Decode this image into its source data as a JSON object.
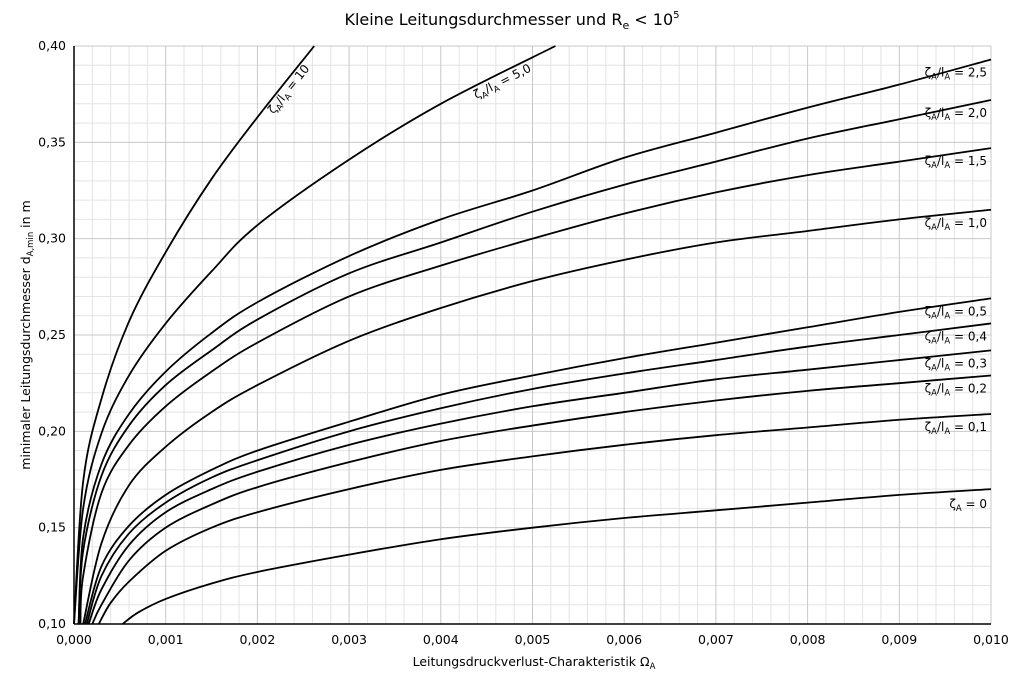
{
  "chart_data": {
    "type": "line",
    "title": {
      "main": "Kleine Leitungsdurchmesser und R",
      "sub": "e",
      "mid": " < 10",
      "sup": "5"
    },
    "xlabel": {
      "main": "Leitungsdruckverlust-Charakteristik Ω",
      "sub": "A"
    },
    "ylabel": {
      "pre": "minimaler Leitungsdurchmesser d",
      "sub": "A,min",
      "post": " in m"
    },
    "xlim": [
      0,
      0.01
    ],
    "ylim": [
      0.1,
      0.4
    ],
    "x_ticks": [
      "0,000",
      "0,001",
      "0,002",
      "0,003",
      "0,004",
      "0,005",
      "0,006",
      "0,007",
      "0,008",
      "0,009",
      "0,010"
    ],
    "y_ticks": [
      "0,10",
      "0,15",
      "0,20",
      "0,25",
      "0,30",
      "0,35",
      "0,40"
    ],
    "x_tick_values": [
      0,
      0.001,
      0.002,
      0.003,
      0.004,
      0.005,
      0.006,
      0.007,
      0.008,
      0.009,
      0.01
    ],
    "y_tick_values": [
      0.1,
      0.15,
      0.2,
      0.25,
      0.3,
      0.35,
      0.4
    ],
    "grid": true,
    "minor_grid": true,
    "legend": "inline labels",
    "line_color": "#000000",
    "series": [
      {
        "name": "ζA/lA = 10",
        "label": {
          "zeta_sub": "A",
          "mid": "/l",
          "l_sub": "A",
          "value": " = 10"
        },
        "label_placement": "rotated-top",
        "x": [
          0.0,
          0.0001,
          0.0003,
          0.0006,
          0.001,
          0.0015,
          0.002,
          0.00262
        ],
        "y": [
          0.1,
          0.174,
          0.217,
          0.257,
          0.293,
          0.331,
          0.363,
          0.4
        ]
      },
      {
        "name": "ζA/lA = 5,0",
        "label": {
          "zeta_sub": "A",
          "mid": "/l",
          "l_sub": "A",
          "value": " = 5,0"
        },
        "label_placement": "rotated-top",
        "x": [
          0.0,
          0.0001,
          0.0003,
          0.0006,
          0.001,
          0.0015,
          0.002,
          0.003,
          0.004,
          0.00525
        ],
        "y": [
          0.1,
          0.16,
          0.199,
          0.229,
          0.256,
          0.283,
          0.307,
          0.341,
          0.37,
          0.4
        ]
      },
      {
        "name": "ζA/lA = 2,5",
        "label": {
          "zeta_sub": "A",
          "mid": "/l",
          "l_sub": "A",
          "value": " = 2,5"
        },
        "label_placement": "right",
        "x": [
          5e-05,
          0.0001,
          0.0003,
          0.0006,
          0.001,
          0.0015,
          0.002,
          0.003,
          0.004,
          0.005,
          0.006,
          0.007,
          0.008,
          0.009,
          0.01
        ],
        "y": [
          0.1,
          0.145,
          0.183,
          0.209,
          0.231,
          0.251,
          0.267,
          0.291,
          0.31,
          0.325,
          0.342,
          0.355,
          0.368,
          0.38,
          0.393
        ]
      },
      {
        "name": "ζA/lA = 2,0",
        "label": {
          "zeta_sub": "A",
          "mid": "/l",
          "l_sub": "A",
          "value": " = 2,0"
        },
        "label_placement": "right",
        "x": [
          5e-05,
          0.0001,
          0.0003,
          0.0006,
          0.001,
          0.0015,
          0.002,
          0.003,
          0.004,
          0.005,
          0.006,
          0.007,
          0.008,
          0.009,
          0.01
        ],
        "y": [
          0.1,
          0.138,
          0.177,
          0.203,
          0.224,
          0.242,
          0.258,
          0.282,
          0.298,
          0.314,
          0.328,
          0.34,
          0.352,
          0.362,
          0.372
        ]
      },
      {
        "name": "ζA/lA = 1,5",
        "label": {
          "zeta_sub": "A",
          "mid": "/l",
          "l_sub": "A",
          "value": " = 1,5"
        },
        "label_placement": "right",
        "x": [
          7e-05,
          0.0001,
          0.0003,
          0.0006,
          0.001,
          0.0015,
          0.002,
          0.003,
          0.004,
          0.005,
          0.006,
          0.007,
          0.008,
          0.009,
          0.01
        ],
        "y": [
          0.1,
          0.125,
          0.168,
          0.193,
          0.213,
          0.231,
          0.246,
          0.27,
          0.286,
          0.3,
          0.313,
          0.324,
          0.333,
          0.34,
          0.347
        ]
      },
      {
        "name": "ζA/lA = 1,0",
        "label": {
          "zeta_sub": "A",
          "mid": "/l",
          "l_sub": "A",
          "value": " = 1,0"
        },
        "label_placement": "right",
        "x": [
          0.0001,
          0.0003,
          0.0006,
          0.001,
          0.0015,
          0.002,
          0.003,
          0.004,
          0.005,
          0.006,
          0.007,
          0.008,
          0.009,
          0.01
        ],
        "y": [
          0.1,
          0.142,
          0.172,
          0.192,
          0.21,
          0.224,
          0.247,
          0.264,
          0.278,
          0.289,
          0.298,
          0.304,
          0.31,
          0.315
        ]
      },
      {
        "name": "ζA/lA = 0,5",
        "label": {
          "zeta_sub": "A",
          "mid": "/l",
          "l_sub": "A",
          "value": " = 0,5"
        },
        "label_placement": "right",
        "x": [
          0.00012,
          0.0003,
          0.0006,
          0.001,
          0.0015,
          0.002,
          0.003,
          0.004,
          0.005,
          0.006,
          0.007,
          0.008,
          0.009,
          0.01
        ],
        "y": [
          0.1,
          0.13,
          0.151,
          0.167,
          0.18,
          0.19,
          0.205,
          0.219,
          0.229,
          0.238,
          0.246,
          0.254,
          0.262,
          0.269
        ]
      },
      {
        "name": "ζA/lA = 0,4",
        "label": {
          "zeta_sub": "A",
          "mid": "/l",
          "l_sub": "A",
          "value": " = 0,4"
        },
        "label_placement": "right",
        "x": [
          0.00014,
          0.0003,
          0.0006,
          0.001,
          0.0015,
          0.002,
          0.003,
          0.004,
          0.005,
          0.006,
          0.007,
          0.008,
          0.009,
          0.01
        ],
        "y": [
          0.1,
          0.125,
          0.147,
          0.163,
          0.176,
          0.185,
          0.2,
          0.212,
          0.222,
          0.23,
          0.237,
          0.244,
          0.25,
          0.256
        ]
      },
      {
        "name": "ζA/lA = 0,3",
        "label": {
          "zeta_sub": "A",
          "mid": "/l",
          "l_sub": "A",
          "value": " = 0,3"
        },
        "label_placement": "right",
        "x": [
          0.00016,
          0.0003,
          0.0006,
          0.001,
          0.0015,
          0.002,
          0.003,
          0.004,
          0.005,
          0.006,
          0.007,
          0.008,
          0.009,
          0.01
        ],
        "y": [
          0.1,
          0.118,
          0.141,
          0.158,
          0.17,
          0.179,
          0.193,
          0.204,
          0.213,
          0.22,
          0.227,
          0.232,
          0.237,
          0.242
        ]
      },
      {
        "name": "ζA/lA = 0,2",
        "label": {
          "zeta_sub": "A",
          "mid": "/l",
          "l_sub": "A",
          "value": " = 0,2"
        },
        "label_placement": "right",
        "x": [
          0.0002,
          0.0003,
          0.0006,
          0.001,
          0.0015,
          0.002,
          0.003,
          0.004,
          0.005,
          0.006,
          0.007,
          0.008,
          0.009,
          0.01
        ],
        "y": [
          0.1,
          0.11,
          0.133,
          0.15,
          0.162,
          0.171,
          0.184,
          0.195,
          0.203,
          0.21,
          0.216,
          0.221,
          0.225,
          0.229
        ]
      },
      {
        "name": "ζA/lA = 0,1",
        "label": {
          "zeta_sub": "A",
          "mid": "/l",
          "l_sub": "A",
          "value": " = 0,1"
        },
        "label_placement": "right",
        "x": [
          0.00027,
          0.0004,
          0.0006,
          0.001,
          0.0015,
          0.002,
          0.003,
          0.004,
          0.005,
          0.006,
          0.007,
          0.008,
          0.009,
          0.01
        ],
        "y": [
          0.1,
          0.111,
          0.122,
          0.138,
          0.15,
          0.158,
          0.17,
          0.18,
          0.187,
          0.193,
          0.198,
          0.202,
          0.206,
          0.209
        ]
      },
      {
        "name": "ζA = 0",
        "label": {
          "zeta_sub": "A",
          "mid": "",
          "l_sub": "",
          "value": " = 0"
        },
        "label_placement": "right-below",
        "x": [
          0.00053,
          0.0007,
          0.001,
          0.0015,
          0.002,
          0.003,
          0.004,
          0.005,
          0.006,
          0.007,
          0.008,
          0.009,
          0.01
        ],
        "y": [
          0.1,
          0.106,
          0.113,
          0.121,
          0.127,
          0.136,
          0.144,
          0.15,
          0.155,
          0.159,
          0.163,
          0.167,
          0.17
        ]
      }
    ]
  }
}
